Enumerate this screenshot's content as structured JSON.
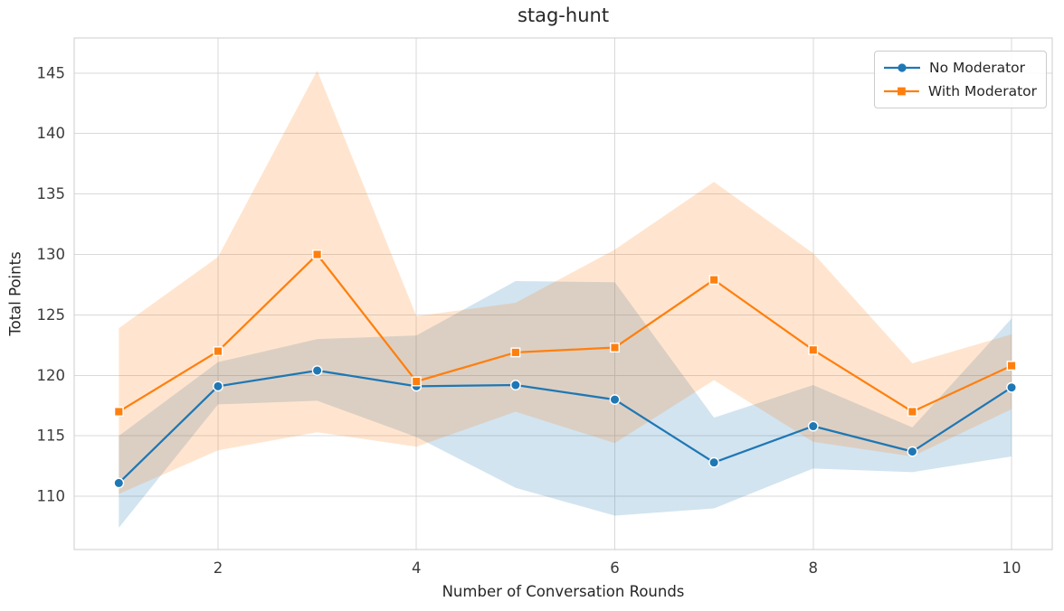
{
  "chart_data": {
    "type": "line",
    "title": "stag-hunt",
    "xlabel": "Number of Conversation Rounds",
    "ylabel": "Total Points",
    "grid": true,
    "legend_position": "upper right",
    "x": [
      1,
      2,
      3,
      4,
      5,
      6,
      7,
      8,
      9,
      10
    ],
    "xticks": [
      2,
      4,
      6,
      8,
      10
    ],
    "yticks": [
      110,
      115,
      120,
      125,
      130,
      135,
      140,
      145
    ],
    "xlim": [
      0.55,
      10.41
    ],
    "ylim": [
      105.6,
      147.9
    ],
    "band_alpha": 0.2,
    "series": [
      {
        "name": "No Moderator",
        "color": "#1f77b4",
        "marker": "circle",
        "values": [
          111.1,
          119.1,
          120.4,
          119.1,
          119.2,
          118.0,
          112.8,
          115.8,
          113.7,
          119.0
        ],
        "ci_lower": [
          107.4,
          117.6,
          117.9,
          114.9,
          110.7,
          108.4,
          109.0,
          112.3,
          112.0,
          113.3
        ],
        "ci_upper": [
          115.0,
          121.1,
          123.0,
          123.3,
          127.8,
          127.7,
          116.5,
          119.2,
          115.7,
          124.7
        ]
      },
      {
        "name": "With Moderator",
        "color": "#ff7f0e",
        "marker": "square",
        "values": [
          117.0,
          122.0,
          130.0,
          119.5,
          121.9,
          122.3,
          127.9,
          122.1,
          117.0,
          120.8
        ],
        "ci_lower": [
          110.2,
          113.8,
          115.3,
          114.1,
          117.0,
          114.4,
          119.6,
          114.5,
          113.3,
          117.2
        ],
        "ci_upper": [
          123.9,
          129.8,
          145.2,
          124.9,
          126.0,
          130.4,
          136.0,
          130.1,
          121.0,
          123.4
        ]
      }
    ],
    "colors": {
      "grid": "#d9d9d9",
      "spine": "#cccccc",
      "text": "#262626",
      "tick_text": "#3b3b3b",
      "background": "#ffffff"
    }
  }
}
